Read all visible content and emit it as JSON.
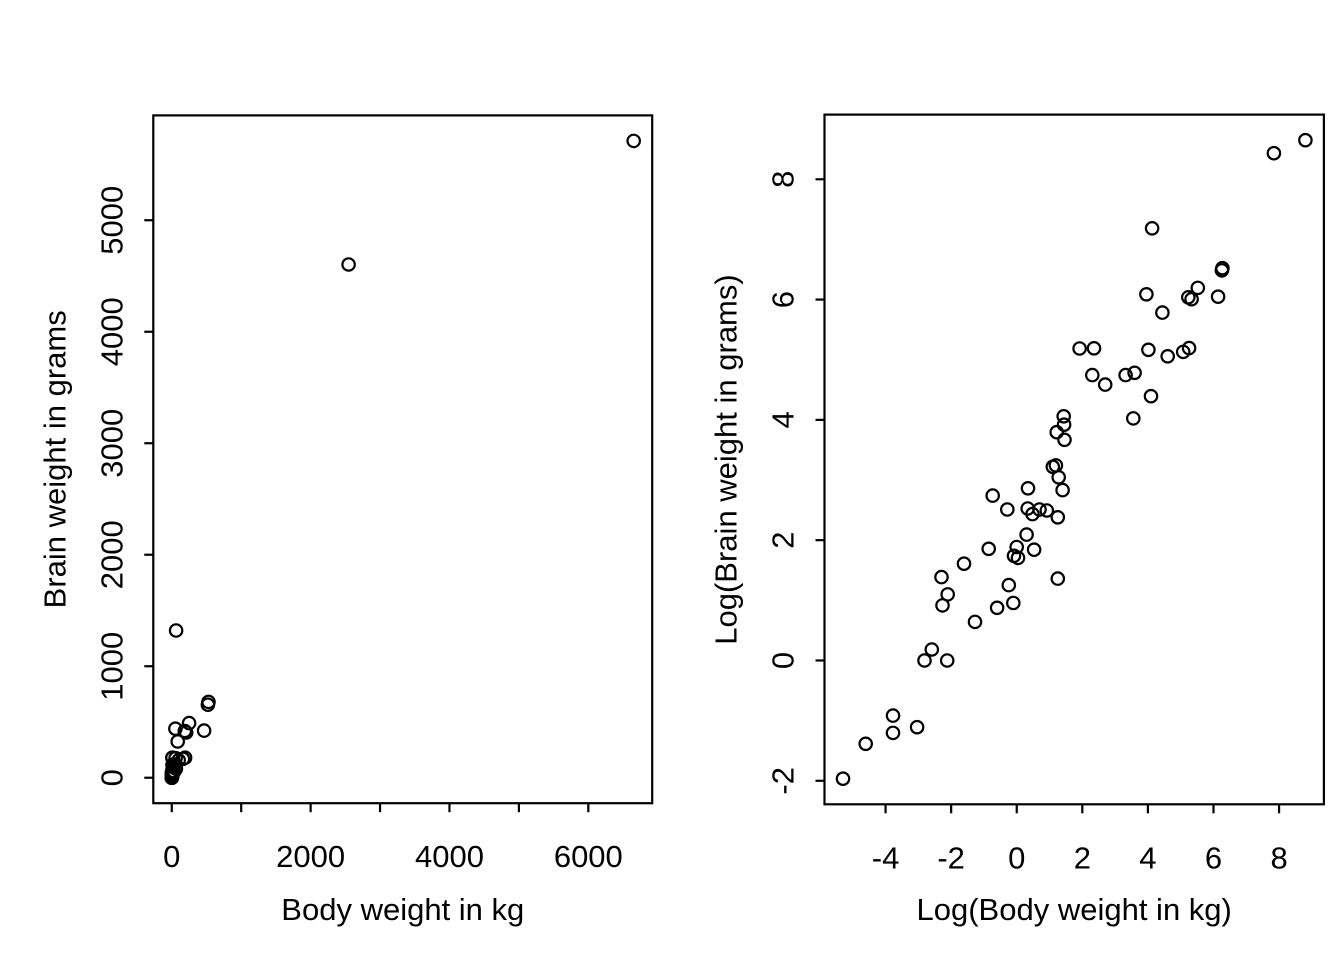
{
  "figure": {
    "background": "#ffffff",
    "stroke_color": "#000000",
    "marker": "open-circle",
    "marker_color": "#000000",
    "grid": false,
    "legend": false,
    "title": ""
  },
  "chart_data": [
    {
      "type": "scatter",
      "title": "",
      "xlabel": "Body weight in kg",
      "ylabel": "Brain weight in grams",
      "xlim": [
        -266.2,
        6920.2
      ],
      "ylim": [
        -228.5,
        5940.3
      ],
      "xticks": [
        0,
        1000,
        2000,
        3000,
        4000,
        5000,
        6000
      ],
      "xtick_labels": [
        "0",
        "",
        "2000",
        "",
        "4000",
        "",
        "6000"
      ],
      "yticks": [
        0,
        1000,
        2000,
        3000,
        4000,
        5000
      ],
      "ytick_labels": [
        "0",
        "1000",
        "2000",
        "3000",
        "4000",
        "5000"
      ],
      "points": [
        [
          3.385,
          44.5
        ],
        [
          0.48,
          15.5
        ],
        [
          1.35,
          8.1
        ],
        [
          465,
          423
        ],
        [
          36.33,
          119.5
        ],
        [
          27.66,
          115
        ],
        [
          14.83,
          98.2
        ],
        [
          1.04,
          5.5
        ],
        [
          4.19,
          58
        ],
        [
          0.425,
          6.4
        ],
        [
          0.101,
          4
        ],
        [
          0.92,
          5.7
        ],
        [
          1,
          6.6
        ],
        [
          0.005,
          0.14
        ],
        [
          0.06,
          1
        ],
        [
          3.5,
          10.8
        ],
        [
          2,
          12.3
        ],
        [
          1.7,
          6.3
        ],
        [
          2547,
          4603
        ],
        [
          0.023,
          0.3
        ],
        [
          187.1,
          419
        ],
        [
          521,
          655
        ],
        [
          0.785,
          3.5
        ],
        [
          10,
          115
        ],
        [
          3.3,
          25.6
        ],
        [
          0.2,
          5
        ],
        [
          1.41,
          17.5
        ],
        [
          529,
          680
        ],
        [
          207,
          406
        ],
        [
          85,
          325
        ],
        [
          0.75,
          12.3
        ],
        [
          62,
          1320
        ],
        [
          6654,
          5712
        ],
        [
          3.5,
          3.9
        ],
        [
          6.8,
          179
        ],
        [
          35,
          56
        ],
        [
          4.05,
          17
        ],
        [
          0.12,
          1
        ],
        [
          0.023,
          0.4
        ],
        [
          0.01,
          0.25
        ],
        [
          1.4,
          12.5
        ],
        [
          250,
          490
        ],
        [
          2.5,
          12.1
        ],
        [
          55.5,
          175
        ],
        [
          100,
          157
        ],
        [
          52.16,
          440
        ],
        [
          10.55,
          179.5
        ],
        [
          0.55,
          2.4
        ],
        [
          60,
          81
        ],
        [
          3.6,
          21
        ],
        [
          4.288,
          39.2
        ],
        [
          0.28,
          1.9
        ],
        [
          0.075,
          1.2
        ],
        [
          0.122,
          3
        ],
        [
          0.048,
          0.33
        ],
        [
          192,
          180
        ],
        [
          3,
          25
        ],
        [
          160,
          169
        ],
        [
          0.9,
          2.6
        ],
        [
          1.62,
          11.4
        ],
        [
          0.104,
          2.5
        ],
        [
          4.235,
          50.4
        ]
      ]
    },
    {
      "type": "scatter",
      "title": "",
      "xlabel": "Log(Body weight in kg)",
      "ylabel": "Log(Brain weight in grams)",
      "xlim": [
        -5.862,
        9.367
      ],
      "ylim": [
        -2.391,
        9.075
      ],
      "xticks": [
        -4,
        -2,
        0,
        2,
        4,
        6,
        8
      ],
      "xtick_labels": [
        "-4",
        "-2",
        "0",
        "2",
        "4",
        "6",
        "8"
      ],
      "yticks": [
        -2,
        0,
        2,
        4,
        6,
        8
      ],
      "ytick_labels": [
        "-2",
        "0",
        "2",
        "4",
        "6",
        "8"
      ],
      "points": [
        [
          1.219,
          3.795
        ],
        [
          -0.734,
          2.741
        ],
        [
          0.3,
          2.092
        ],
        [
          6.142,
          6.047
        ],
        [
          3.593,
          4.783
        ],
        [
          3.32,
          4.745
        ],
        [
          2.697,
          4.587
        ],
        [
          0.039,
          1.705
        ],
        [
          1.433,
          4.06
        ],
        [
          -0.856,
          1.856
        ],
        [
          -2.293,
          1.386
        ],
        [
          -0.083,
          1.74
        ],
        [
          0,
          1.887
        ],
        [
          -5.298,
          -1.966
        ],
        [
          -2.813,
          0
        ],
        [
          1.253,
          2.38
        ],
        [
          0.693,
          2.51
        ],
        [
          0.531,
          1.841
        ],
        [
          7.843,
          8.434
        ],
        [
          -3.772,
          -1.204
        ],
        [
          5.232,
          6.038
        ],
        [
          6.256,
          6.485
        ],
        [
          -0.242,
          1.253
        ],
        [
          2.303,
          4.745
        ],
        [
          1.194,
          3.243
        ],
        [
          -1.609,
          1.609
        ],
        [
          0.344,
          2.862
        ],
        [
          6.271,
          6.522
        ],
        [
          5.333,
          6.006
        ],
        [
          4.443,
          5.784
        ],
        [
          -0.288,
          2.51
        ],
        [
          4.127,
          7.185
        ],
        [
          8.803,
          8.65
        ],
        [
          1.253,
          1.361
        ],
        [
          1.917,
          5.187
        ],
        [
          3.555,
          4.025
        ],
        [
          1.399,
          2.833
        ],
        [
          -2.12,
          0
        ],
        [
          -3.772,
          -0.916
        ],
        [
          -4.605,
          -1.386
        ],
        [
          0.336,
          2.526
        ],
        [
          5.521,
          6.194
        ],
        [
          0.916,
          2.493
        ],
        [
          4.016,
          5.165
        ],
        [
          4.605,
          5.056
        ],
        [
          3.954,
          6.087
        ],
        [
          2.356,
          5.19
        ],
        [
          -0.598,
          0.875
        ],
        [
          4.094,
          4.394
        ],
        [
          1.281,
          3.045
        ],
        [
          1.456,
          3.669
        ],
        [
          -1.273,
          0.642
        ],
        [
          -2.59,
          0.182
        ],
        [
          -2.104,
          1.099
        ],
        [
          -3.037,
          -1.109
        ],
        [
          5.257,
          5.193
        ],
        [
          1.099,
          3.219
        ],
        [
          5.075,
          5.13
        ],
        [
          -0.105,
          0.956
        ],
        [
          0.482,
          2.434
        ],
        [
          -2.263,
          0.916
        ],
        [
          1.443,
          3.92
        ]
      ]
    }
  ]
}
